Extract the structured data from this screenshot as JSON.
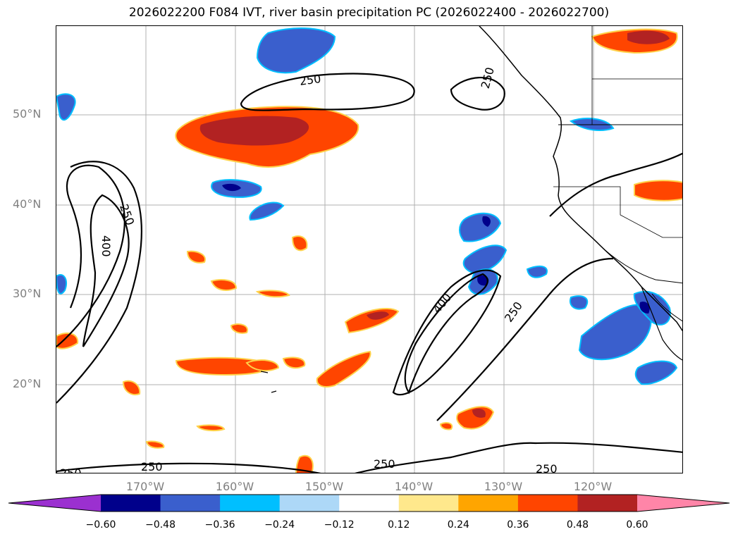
{
  "title": "2026022200 F084 IVT, river basin precipitation PC (2026022400 - 2026022700)",
  "lat_labels": [
    "50°N",
    "40°N",
    "30°N",
    "20°N"
  ],
  "lon_labels": [
    "170°W",
    "160°W",
    "150°W",
    "140°W",
    "130°W",
    "120°W"
  ],
  "contour_labels": [
    "250",
    "250",
    "400",
    "400",
    "250",
    "250",
    "250",
    "250",
    "250",
    "250"
  ],
  "colorbar": {
    "colors": [
      "#9b30d0",
      "#00008b",
      "#3a5fcd",
      "#00bfff",
      "#add8f7",
      "#ffffff",
      "#ffe88c",
      "#ffa500",
      "#ff4500",
      "#b22222",
      "#ff85a8"
    ],
    "tick_labels": [
      "−0.60",
      "−0.48",
      "−0.36",
      "−0.24",
      "−0.12",
      "0.12",
      "0.24",
      "0.36",
      "0.48",
      "0.60"
    ]
  }
}
